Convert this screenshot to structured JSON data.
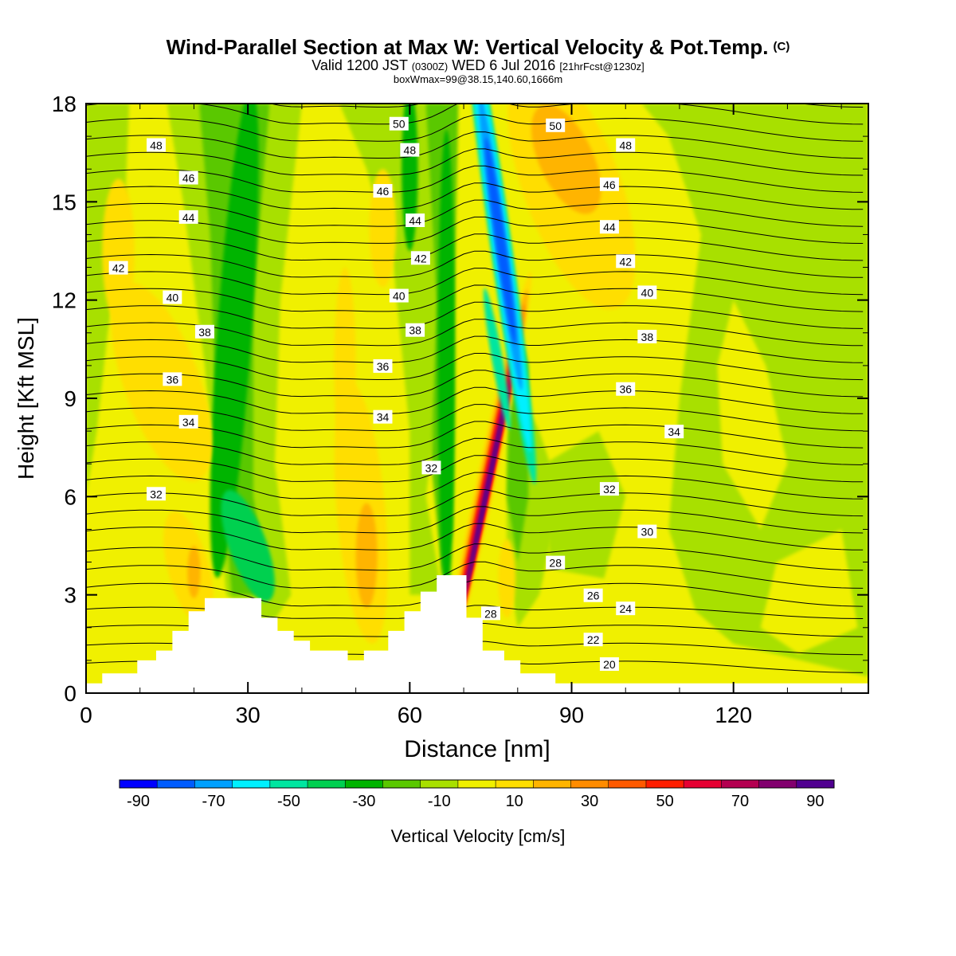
{
  "title": {
    "main": "Wind-Parallel Section at Max W: Vertical Velocity & Pot.Temp.",
    "copyright": "(C)",
    "valid_prefix": "Valid 1200 JST",
    "valid_utc": "(0300Z)",
    "valid_date": "WED 6 Jul 2016",
    "valid_fcst": "[21hrFcst@1230z]",
    "box_info": "boxWmax=99@38.15,140.60,1666m"
  },
  "axes": {
    "xlabel": "Distance [nm]",
    "ylabel": "Height [Kft MSL]",
    "x_ticks": [
      "0",
      "30",
      "60",
      "90",
      "120"
    ],
    "y_ticks": [
      "0",
      "3",
      "6",
      "9",
      "12",
      "15",
      "18"
    ]
  },
  "colorbar": {
    "label": "Vertical Velocity [cm/s]",
    "tick_labels": [
      "-90",
      "-70",
      "-50",
      "-30",
      "-10",
      "10",
      "30",
      "50",
      "70",
      "90"
    ],
    "colors": [
      "#0000ff",
      "#005cff",
      "#00a0ff",
      "#00f0ff",
      "#00e6a0",
      "#00d050",
      "#00b400",
      "#5ac800",
      "#a8e000",
      "#f0f000",
      "#ffde00",
      "#ffb400",
      "#ff8c00",
      "#ff5a00",
      "#ff1e00",
      "#e60032",
      "#b40050",
      "#82006e",
      "#500090"
    ]
  },
  "chart_data": {
    "type": "heatmap",
    "title": "Wind-Parallel Section at Max W: Vertical Velocity & Pot.Temp.",
    "xlabel": "Distance [nm]",
    "ylabel": "Height [Kft MSL]",
    "xlim": [
      0,
      145
    ],
    "ylim": [
      0,
      18
    ],
    "color_field": "Vertical Velocity [cm/s]",
    "color_levels": [
      -100,
      -90,
      -80,
      -70,
      -60,
      -50,
      -40,
      -30,
      -20,
      -10,
      0,
      10,
      20,
      30,
      40,
      50,
      60,
      70,
      80,
      90,
      100
    ],
    "contour_field": "Pot.Temp.",
    "contour_labels": [
      {
        "value": 48,
        "x": 13,
        "y": 16.7
      },
      {
        "value": 46,
        "x": 19,
        "y": 15.7
      },
      {
        "value": 44,
        "x": 19,
        "y": 14.5
      },
      {
        "value": 42,
        "x": 6,
        "y": 12.95
      },
      {
        "value": 40,
        "x": 16,
        "y": 12.05
      },
      {
        "value": 38,
        "x": 22,
        "y": 11.0
      },
      {
        "value": 36,
        "x": 16,
        "y": 9.55
      },
      {
        "value": 34,
        "x": 19,
        "y": 8.25
      },
      {
        "value": 32,
        "x": 13,
        "y": 6.05
      },
      {
        "value": 50,
        "x": 58,
        "y": 17.35
      },
      {
        "value": 48,
        "x": 60,
        "y": 16.55
      },
      {
        "value": 46,
        "x": 55,
        "y": 15.3
      },
      {
        "value": 44,
        "x": 61,
        "y": 14.4
      },
      {
        "value": 42,
        "x": 62,
        "y": 13.25
      },
      {
        "value": 40,
        "x": 58,
        "y": 12.1
      },
      {
        "value": 38,
        "x": 61,
        "y": 11.05
      },
      {
        "value": 36,
        "x": 55,
        "y": 9.95
      },
      {
        "value": 34,
        "x": 55,
        "y": 8.4
      },
      {
        "value": 32,
        "x": 64,
        "y": 6.85
      },
      {
        "value": 50,
        "x": 87,
        "y": 17.3
      },
      {
        "value": 48,
        "x": 100,
        "y": 16.7
      },
      {
        "value": 46,
        "x": 97,
        "y": 15.5
      },
      {
        "value": 44,
        "x": 97,
        "y": 14.2
      },
      {
        "value": 42,
        "x": 100,
        "y": 13.15
      },
      {
        "value": 40,
        "x": 104,
        "y": 12.2
      },
      {
        "value": 38,
        "x": 104,
        "y": 10.85
      },
      {
        "value": 36,
        "x": 100,
        "y": 9.25
      },
      {
        "value": 34,
        "x": 109,
        "y": 7.95
      },
      {
        "value": 32,
        "x": 97,
        "y": 6.2
      },
      {
        "value": 30,
        "x": 104,
        "y": 4.9
      },
      {
        "value": 28,
        "x": 87,
        "y": 3.95
      },
      {
        "value": 26,
        "x": 94,
        "y": 2.95
      },
      {
        "value": 24,
        "x": 100,
        "y": 2.55
      },
      {
        "value": 22,
        "x": 94,
        "y": 1.6
      },
      {
        "value": 20,
        "x": 97,
        "y": 0.85
      },
      {
        "value": 28,
        "x": 75,
        "y": 2.4
      }
    ],
    "features": [
      {
        "sign": "negative",
        "peak_cm_s": -80,
        "x": 77,
        "y": 14.0
      },
      {
        "sign": "positive",
        "peak_cm_s": 99,
        "x": 74.5,
        "y": 5.5
      },
      {
        "sign": "negative",
        "peak_cm_s": -30,
        "x": 28,
        "y": 9.0
      },
      {
        "sign": "positive",
        "peak_cm_s": 30,
        "x": 53,
        "y": 4.0
      }
    ],
    "terrain": [
      [
        0,
        0.3
      ],
      [
        3,
        0.3
      ],
      [
        3,
        0.6
      ],
      [
        9.5,
        0.6
      ],
      [
        9.5,
        1.0
      ],
      [
        13,
        1.0
      ],
      [
        13,
        1.3
      ],
      [
        16,
        1.3
      ],
      [
        16,
        1.9
      ],
      [
        19,
        1.9
      ],
      [
        19,
        2.5
      ],
      [
        22,
        2.5
      ],
      [
        22,
        2.9
      ],
      [
        32.5,
        2.9
      ],
      [
        32.5,
        2.3
      ],
      [
        35.5,
        2.3
      ],
      [
        35.5,
        1.9
      ],
      [
        38.5,
        1.9
      ],
      [
        38.5,
        1.6
      ],
      [
        41.5,
        1.6
      ],
      [
        41.5,
        1.3
      ],
      [
        48.5,
        1.3
      ],
      [
        48.5,
        1.0
      ],
      [
        51.5,
        1.0
      ],
      [
        51.5,
        1.3
      ],
      [
        56,
        1.3
      ],
      [
        56,
        1.9
      ],
      [
        59,
        1.9
      ],
      [
        59,
        2.5
      ],
      [
        62,
        2.5
      ],
      [
        62,
        3.1
      ],
      [
        65,
        3.1
      ],
      [
        65,
        3.6
      ],
      [
        70.5,
        3.6
      ],
      [
        70.5,
        2.3
      ],
      [
        73.5,
        2.3
      ],
      [
        73.5,
        1.3
      ],
      [
        77.5,
        1.3
      ],
      [
        77.5,
        1.0
      ],
      [
        80.5,
        1.0
      ],
      [
        80.5,
        0.6
      ],
      [
        87,
        0.6
      ],
      [
        87,
        0.3
      ],
      [
        145,
        0.3
      ]
    ]
  }
}
